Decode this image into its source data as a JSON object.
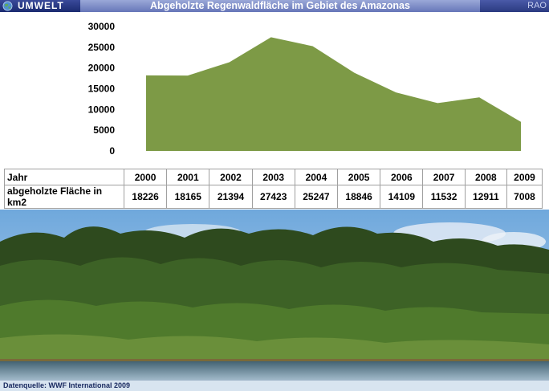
{
  "header": {
    "section": "UMWELT",
    "title": "Abgeholzte Regenwaldfläche im Gebiet des Amazonas",
    "brand": "RAO"
  },
  "chart_data": {
    "type": "area",
    "title": "",
    "xlabel": "",
    "ylabel": "",
    "ylim": [
      0,
      30000
    ],
    "yticks": [
      "30000",
      "25000",
      "20000",
      "15000",
      "10000",
      "5000",
      "0"
    ],
    "x": [
      "2000",
      "2001",
      "2002",
      "2003",
      "2004",
      "2005",
      "2006",
      "2007",
      "2008",
      "2009"
    ],
    "series": [
      {
        "values": [
          18226,
          18165,
          21394,
          27423,
          25247,
          18846,
          14109,
          11532,
          12911,
          7008
        ]
      }
    ],
    "grid": false,
    "color": "#7d9a46"
  },
  "table": {
    "row1_label": "Jahr",
    "row2_label": "abgeholzte Fläche in km2",
    "years": [
      "2000",
      "2001",
      "2002",
      "2003",
      "2004",
      "2005",
      "2006",
      "2007",
      "2008",
      "2009"
    ],
    "values": [
      "18226",
      "18165",
      "21394",
      "27423",
      "25247",
      "18846",
      "14109",
      "11532",
      "12911",
      "7008"
    ]
  },
  "footer": {
    "source": "Datenquelle: WWF International 2009"
  }
}
